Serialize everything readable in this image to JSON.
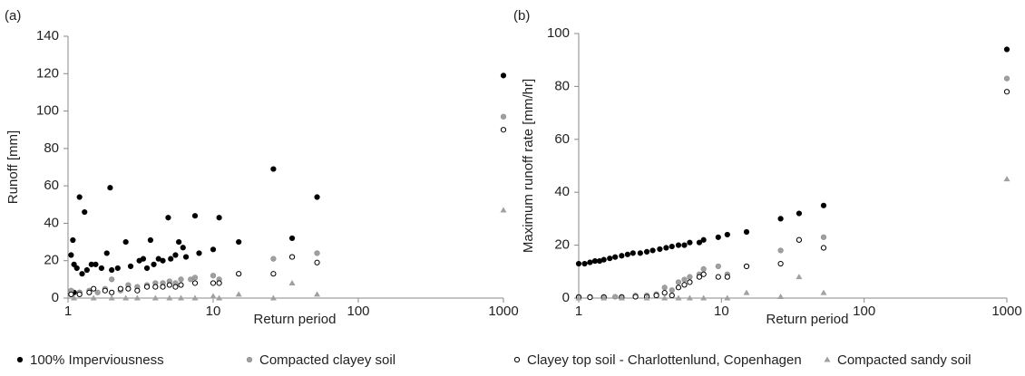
{
  "chart_data": [
    {
      "type": "scatter",
      "label": "(a)",
      "xlabel": "Return period",
      "ylabel": "Runoff [mm]",
      "xscale": "log",
      "xlim": [
        1,
        1000
      ],
      "xticks": [
        1,
        10,
        100,
        1000
      ],
      "ylim": [
        0,
        140
      ],
      "yticks": [
        0,
        20,
        40,
        60,
        80,
        100,
        120,
        140
      ],
      "series": [
        {
          "name": "100% Imperviousness",
          "color": "#000000",
          "marker": "circle",
          "x": [
            1.05,
            1.08,
            1.1,
            1.15,
            1.2,
            1.25,
            1.3,
            1.35,
            1.45,
            1.55,
            1.7,
            1.85,
            1.95,
            2.0,
            2.2,
            2.5,
            2.7,
            3.1,
            3.3,
            3.5,
            3.7,
            3.9,
            4.2,
            4.5,
            4.9,
            5.1,
            5.5,
            5.8,
            6.2,
            6.5,
            7.5,
            8,
            10,
            11,
            15,
            26,
            35,
            52,
            1000,
            1.05,
            1.1,
            1.2
          ],
          "values": [
            23,
            31,
            18,
            16,
            54,
            13,
            46,
            15,
            18,
            18,
            16,
            24,
            59,
            15,
            16,
            30,
            17,
            20,
            21,
            16,
            31,
            18,
            21,
            20,
            43,
            21,
            23,
            30,
            27,
            22,
            44,
            24,
            26,
            43,
            30,
            69,
            32,
            54,
            119,
            2,
            3,
            3
          ]
        },
        {
          "name": "Compacted clayey soil",
          "color": "#a0a0a0",
          "marker": "circle",
          "x": [
            1.05,
            1.2,
            1.4,
            1.6,
            1.8,
            2,
            2.3,
            2.6,
            3,
            3.5,
            4,
            4.5,
            5,
            5.5,
            6,
            7,
            7.5,
            10,
            11,
            15,
            26,
            35,
            52,
            1000
          ],
          "values": [
            4,
            3,
            4,
            3,
            5,
            10,
            4,
            7,
            6,
            7,
            8,
            8,
            9,
            8,
            10,
            10,
            11,
            12,
            10,
            13,
            21,
            22,
            24,
            97
          ]
        },
        {
          "name": "Clayey top soil - Charlottenlund, Copenhagen",
          "color": "#000000",
          "marker": "open-circle",
          "x": [
            1.05,
            1.2,
            1.4,
            1.5,
            1.8,
            2,
            2.3,
            2.6,
            3,
            3.5,
            4,
            4.5,
            5,
            5.5,
            6,
            7.5,
            10,
            11,
            15,
            26,
            35,
            52,
            1000
          ],
          "values": [
            2,
            2,
            3,
            5,
            4,
            3,
            5,
            5,
            4,
            6,
            6,
            6,
            7,
            6,
            7,
            8,
            8,
            8,
            13,
            13,
            22,
            19,
            90
          ]
        },
        {
          "name": "Compacted sandy soil",
          "color": "#a0a0a0",
          "marker": "triangle",
          "x": [
            1.1,
            1.5,
            2,
            2.5,
            3,
            4,
            5,
            6,
            7.5,
            10,
            11,
            15,
            26,
            35,
            52,
            1000
          ],
          "values": [
            0,
            0,
            0,
            0,
            0,
            0,
            0,
            0,
            0,
            1,
            0,
            2,
            0,
            8,
            2,
            47
          ]
        }
      ]
    },
    {
      "type": "scatter",
      "label": "(b)",
      "xlabel": "Return period",
      "ylabel": "Maximum runoff rate [mm/hr]",
      "xscale": "log",
      "xlim": [
        1,
        1000
      ],
      "xticks": [
        1,
        10,
        100,
        1000
      ],
      "ylim": [
        0,
        100
      ],
      "yticks": [
        0,
        20,
        40,
        60,
        80,
        100
      ],
      "series": [
        {
          "color": "#000000",
          "marker": "circle",
          "x": [
            1,
            1.1,
            1.2,
            1.3,
            1.4,
            1.5,
            1.65,
            1.8,
            2,
            2.2,
            2.4,
            2.7,
            3,
            3.3,
            3.7,
            4.1,
            4.5,
            5,
            5.5,
            6,
            7,
            7.5,
            9.5,
            11,
            15,
            26,
            35,
            52,
            1000
          ],
          "values": [
            13,
            13,
            13.5,
            14,
            14,
            14.5,
            15,
            15.5,
            16,
            16.5,
            17,
            17,
            17.5,
            18,
            18.5,
            19,
            19.5,
            20,
            20,
            21,
            21,
            22,
            23,
            24,
            25,
            30,
            32,
            35,
            94
          ]
        },
        {
          "color": "#a0a0a0",
          "marker": "circle",
          "x": [
            1,
            1.2,
            1.5,
            1.8,
            2,
            2.5,
            3,
            3.5,
            4,
            4.5,
            5,
            5.5,
            6,
            7,
            7.5,
            9.5,
            11,
            15,
            26,
            35,
            52,
            1000
          ],
          "values": [
            0.5,
            0.5,
            0.5,
            0.5,
            0.5,
            1,
            1,
            1.5,
            4,
            3,
            6,
            7,
            8,
            9,
            11,
            12,
            9,
            12,
            18,
            22,
            23,
            83
          ]
        },
        {
          "color": "#000000",
          "marker": "open-circle",
          "x": [
            1,
            1.2,
            1.5,
            2,
            2.5,
            3,
            3.5,
            4,
            4.5,
            5,
            5.5,
            6,
            7,
            7.5,
            9.5,
            11,
            15,
            26,
            35,
            52,
            1000
          ],
          "values": [
            0.3,
            0.3,
            0.3,
            0.3,
            0.5,
            0.5,
            1,
            2,
            1,
            4,
            5,
            6,
            8,
            9,
            8,
            8,
            12,
            13,
            22,
            19,
            78
          ]
        },
        {
          "color": "#a0a0a0",
          "marker": "triangle",
          "x": [
            1,
            1.5,
            2,
            3,
            4,
            5,
            6,
            7.5,
            11,
            15,
            26,
            35,
            52,
            1000
          ],
          "values": [
            0,
            0,
            0,
            0,
            0,
            0,
            0,
            0,
            0,
            2,
            0.5,
            8,
            2,
            45
          ]
        }
      ]
    }
  ]
}
